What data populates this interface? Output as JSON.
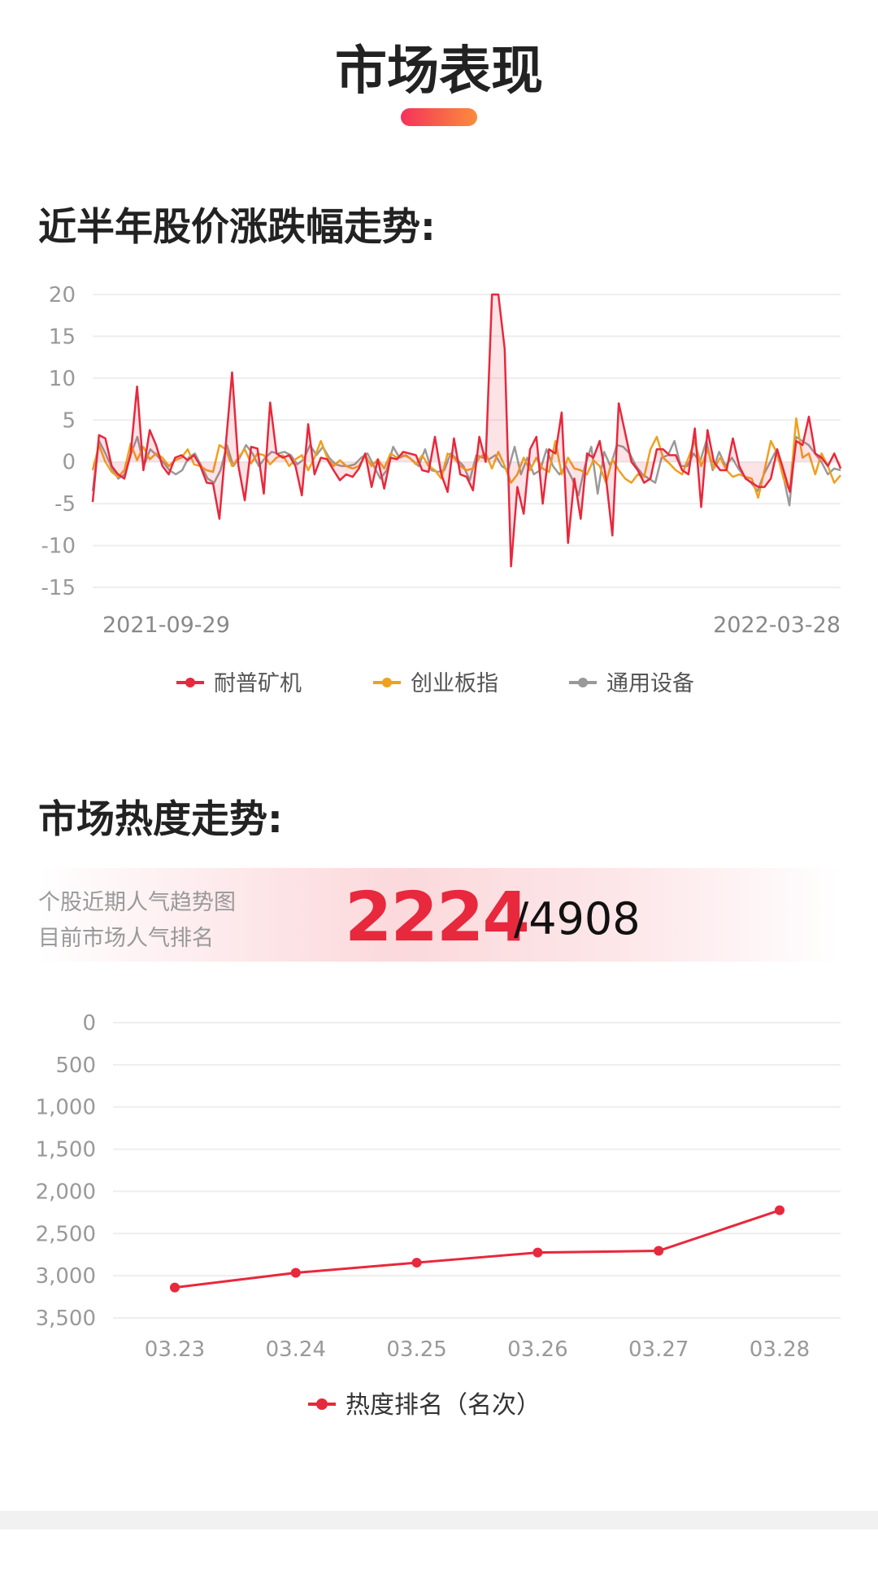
{
  "header": {
    "title": "市场表现"
  },
  "section1": {
    "title": "近半年股价涨跌幅走势:"
  },
  "section2": {
    "title": "市场热度走势:",
    "banner_line1": "个股近期人气趋势图",
    "banner_line2": "目前市场人气排名",
    "rank": "2224",
    "total": "/4908"
  },
  "colors": {
    "accent": "#e8283c",
    "orange": "#f0a020",
    "gray": "#999999",
    "title_gradient": [
      "#f5325a",
      "#fb8c3c"
    ]
  },
  "chart_data": [
    {
      "type": "line",
      "ylim": [
        -15,
        20
      ],
      "yticks": [
        "20",
        "15",
        "10",
        "5",
        "0",
        "-5",
        "-10",
        "-15"
      ],
      "ytick_values": [
        20,
        15,
        10,
        5,
        0,
        -5,
        -10,
        -15
      ],
      "x_start_label": "2021-09-29",
      "x_end_label": "2022-03-28",
      "grid": true,
      "legend": "bottom",
      "series": [
        {
          "name": "耐普矿机",
          "color": "#e8283c",
          "fill": true,
          "values": [
            -4.8,
            3.2,
            2.8,
            -0.5,
            -1.5,
            -2,
            1,
            9,
            -1,
            3.8,
            2,
            -0.5,
            -1.5,
            0.5,
            0.8,
            0.2,
            0.8,
            -0.5,
            -2.5,
            -2.6,
            -6.8,
            2,
            10.7,
            -0.5,
            -4.6,
            1.8,
            1.6,
            -3.8,
            7.1,
            1,
            0.5,
            0.8,
            -0.5,
            -4,
            4.5,
            -1.5,
            0.5,
            0.3,
            -1,
            -2.2,
            -1.5,
            -1.8,
            -0.8,
            1,
            -3,
            0.3,
            -3.2,
            0.5,
            0.3,
            1.2,
            1,
            0.8,
            -1,
            -1.2,
            3,
            -1.5,
            -3.6,
            2.8,
            -1.5,
            -1.8,
            -3.4,
            3,
            0,
            20,
            20,
            13.5,
            -12.5,
            -3,
            -6.2,
            1.5,
            3,
            -5,
            1.5,
            1,
            5.9,
            -9.7,
            -2,
            -6.8,
            1,
            0.5,
            2.5,
            -2,
            -8.8,
            7,
            3.5,
            0,
            -1,
            -2.5,
            -2,
            1.5,
            1.5,
            0.8,
            0.8,
            -1,
            -1.5,
            4,
            -5.4,
            3.8,
            0,
            -1,
            -1,
            2.8,
            -0.5,
            -2,
            -2.5,
            -3,
            -3,
            -2,
            1.5,
            -1,
            -3.6,
            2.5,
            2,
            5.4,
            1,
            0.5,
            -0.5,
            1,
            -0.8
          ]
        },
        {
          "name": "创业板指",
          "color": "#f0a020",
          "fill": false,
          "values": [
            -1,
            2,
            0,
            -1.2,
            -1.8,
            -1,
            2.2,
            0.2,
            1.8,
            0.3,
            1,
            0.5,
            -0.5,
            0.2,
            0.5,
            1.5,
            -0.3,
            -0.5,
            -1,
            -1.2,
            2,
            1.5,
            -0.5,
            0.5,
            1.5,
            -0.2,
            1,
            0.8,
            -0.3,
            0.5,
            0.8,
            -0.5,
            0.3,
            0.8,
            -1,
            0.5,
            2.5,
            0.5,
            -0.5,
            0.2,
            -0.5,
            -0.8,
            -0.5,
            0.8,
            -0.5,
            0.3,
            -0.8,
            1,
            0.5,
            0.8,
            0.5,
            -0.3,
            0.8,
            -0.5,
            -1,
            -2,
            1,
            0.5,
            -0.5,
            -1,
            -0.8,
            0.5,
            1,
            -0.8,
            1.2,
            -0.5,
            -2.5,
            -1.5,
            0.5,
            -1,
            0.5,
            -0.8,
            -1.2,
            2.5,
            -1.5,
            0.5,
            -0.8,
            -1,
            -1.5,
            0.2,
            -0.5,
            -2.5,
            0.3,
            -1,
            -2,
            -2.5,
            -1.5,
            -1.8,
            1.5,
            3,
            0.5,
            -0.2,
            -1,
            -1.5,
            0.5,
            2.5,
            -0.5,
            1.5,
            -0.8,
            0.5,
            -1,
            -1.8,
            -1.5,
            -1.8,
            -2,
            -4.3,
            -1,
            2.5,
            1,
            -2,
            -3.5,
            5.2,
            0.5,
            1,
            -1.5,
            1,
            -0.5,
            -2.5,
            -1.6
          ]
        },
        {
          "name": "通用设备",
          "color": "#999999",
          "fill": false,
          "values": [
            -3.5,
            2.5,
            1,
            -0.8,
            -2,
            -1.5,
            1,
            3,
            -0.5,
            1.5,
            0.8,
            0,
            -1,
            -1.5,
            -1,
            0.5,
            1,
            -0.5,
            -2,
            -2.5,
            -1,
            2,
            -0.5,
            0.5,
            2,
            1,
            -0.5,
            0.5,
            1.2,
            1,
            1.2,
            0.8,
            -0.3,
            0.3,
            2,
            0.8,
            1.8,
            0.5,
            -0.3,
            -0.5,
            -0.5,
            -0.3,
            0.5,
            1,
            -0.5,
            -2,
            -1,
            1.8,
            0.5,
            0.8,
            0.2,
            -0.5,
            1.5,
            -1,
            -1.2,
            -1,
            1,
            0.3,
            -0.5,
            -2.2,
            0.8,
            0.5,
            0.3,
            0.8,
            -0.5,
            -1,
            1.8,
            -1.5,
            0.5,
            -1.5,
            -1,
            1.5,
            -0.5,
            -1.5,
            -0.5,
            -2,
            -4,
            -0.5,
            1.8,
            -3.8,
            1.2,
            -0.5,
            2,
            1.8,
            1,
            -0.5,
            -1.5,
            -2,
            -2.5,
            0.5,
            0.8,
            2.5,
            -0.5,
            -0.5,
            1,
            0,
            2.5,
            -1,
            1.2,
            -0.5,
            0.5,
            -0.8,
            -1.8,
            -2.5,
            -3.5,
            -1.5,
            0,
            1.5,
            -1.5,
            -5.2,
            3,
            2.5,
            2,
            1,
            0,
            -1.5,
            -0.8,
            -1
          ]
        }
      ]
    },
    {
      "type": "line",
      "ylim": [
        0,
        3500
      ],
      "y_inverted": true,
      "yticks": [
        "0",
        "500",
        "1,000",
        "1,500",
        "2,000",
        "2,500",
        "3,000",
        "3,500"
      ],
      "ytick_values": [
        0,
        500,
        1000,
        1500,
        2000,
        2500,
        3000,
        3500
      ],
      "categories": [
        "03.23",
        "03.24",
        "03.25",
        "03.26",
        "03.27",
        "03.28"
      ],
      "grid": true,
      "legend": "bottom",
      "series": [
        {
          "name": "热度排名（名次）",
          "color": "#e8283c",
          "values": [
            3140,
            2965,
            2845,
            2725,
            2705,
            2224
          ]
        }
      ]
    }
  ]
}
